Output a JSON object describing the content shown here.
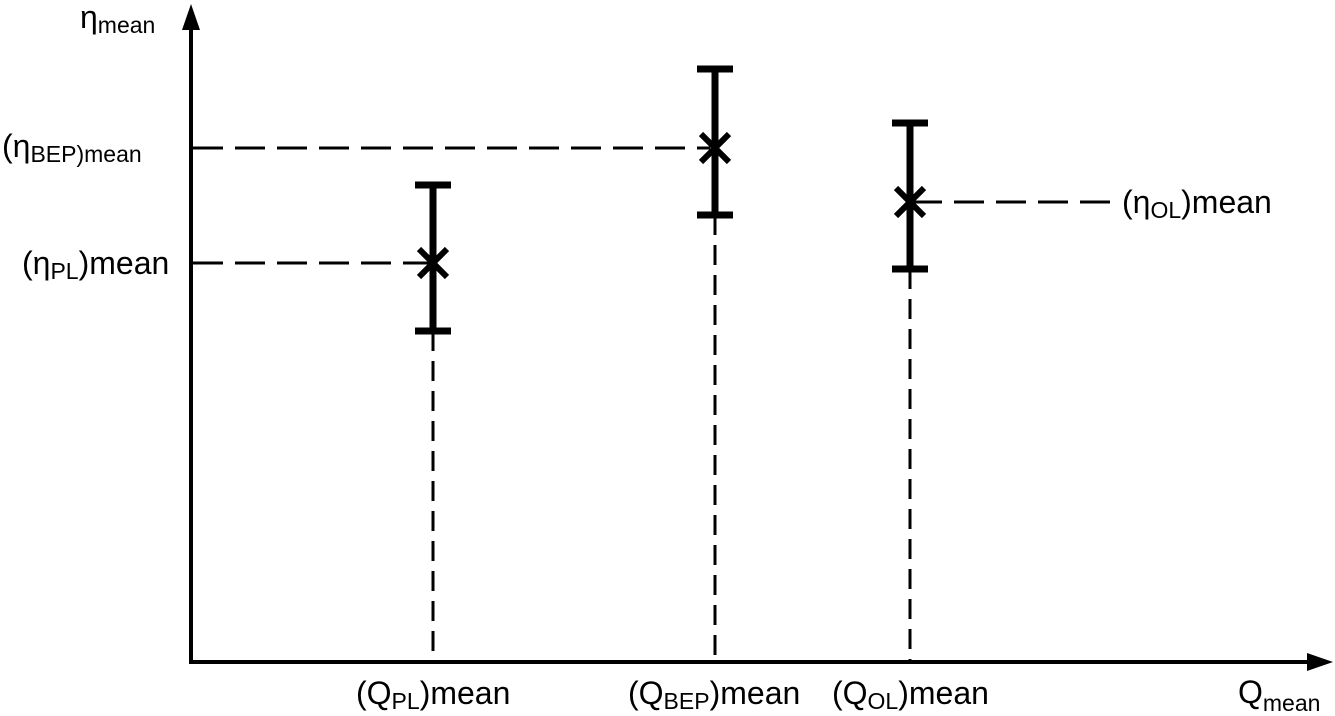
{
  "chart_data": {
    "type": "scatter",
    "title": "",
    "x_axis": {
      "base": "Q",
      "sub": "mean"
    },
    "y_axis": {
      "base": "η",
      "sub": "mean"
    },
    "grid": false,
    "points": [
      {
        "id": "pl",
        "x_label": {
          "base": "(Q",
          "sub": "PL",
          "tail": ")mean"
        },
        "y_label": {
          "base": "(η",
          "sub": "PL",
          "tail": ")mean"
        },
        "y_label_side": "left"
      },
      {
        "id": "bep",
        "x_label": {
          "base": "(Q",
          "sub": "BEP",
          "tail": ")mean"
        },
        "y_label": {
          "base": "(η",
          "sub": "BEP)mean",
          "tail": ""
        },
        "y_label_side": "left"
      },
      {
        "id": "ol",
        "x_label": {
          "base": "(Q",
          "sub": "OL",
          "tail": ")mean"
        },
        "y_label": {
          "base": "(η",
          "sub": "OL",
          "tail": ")mean"
        },
        "y_label_side": "right"
      }
    ]
  }
}
